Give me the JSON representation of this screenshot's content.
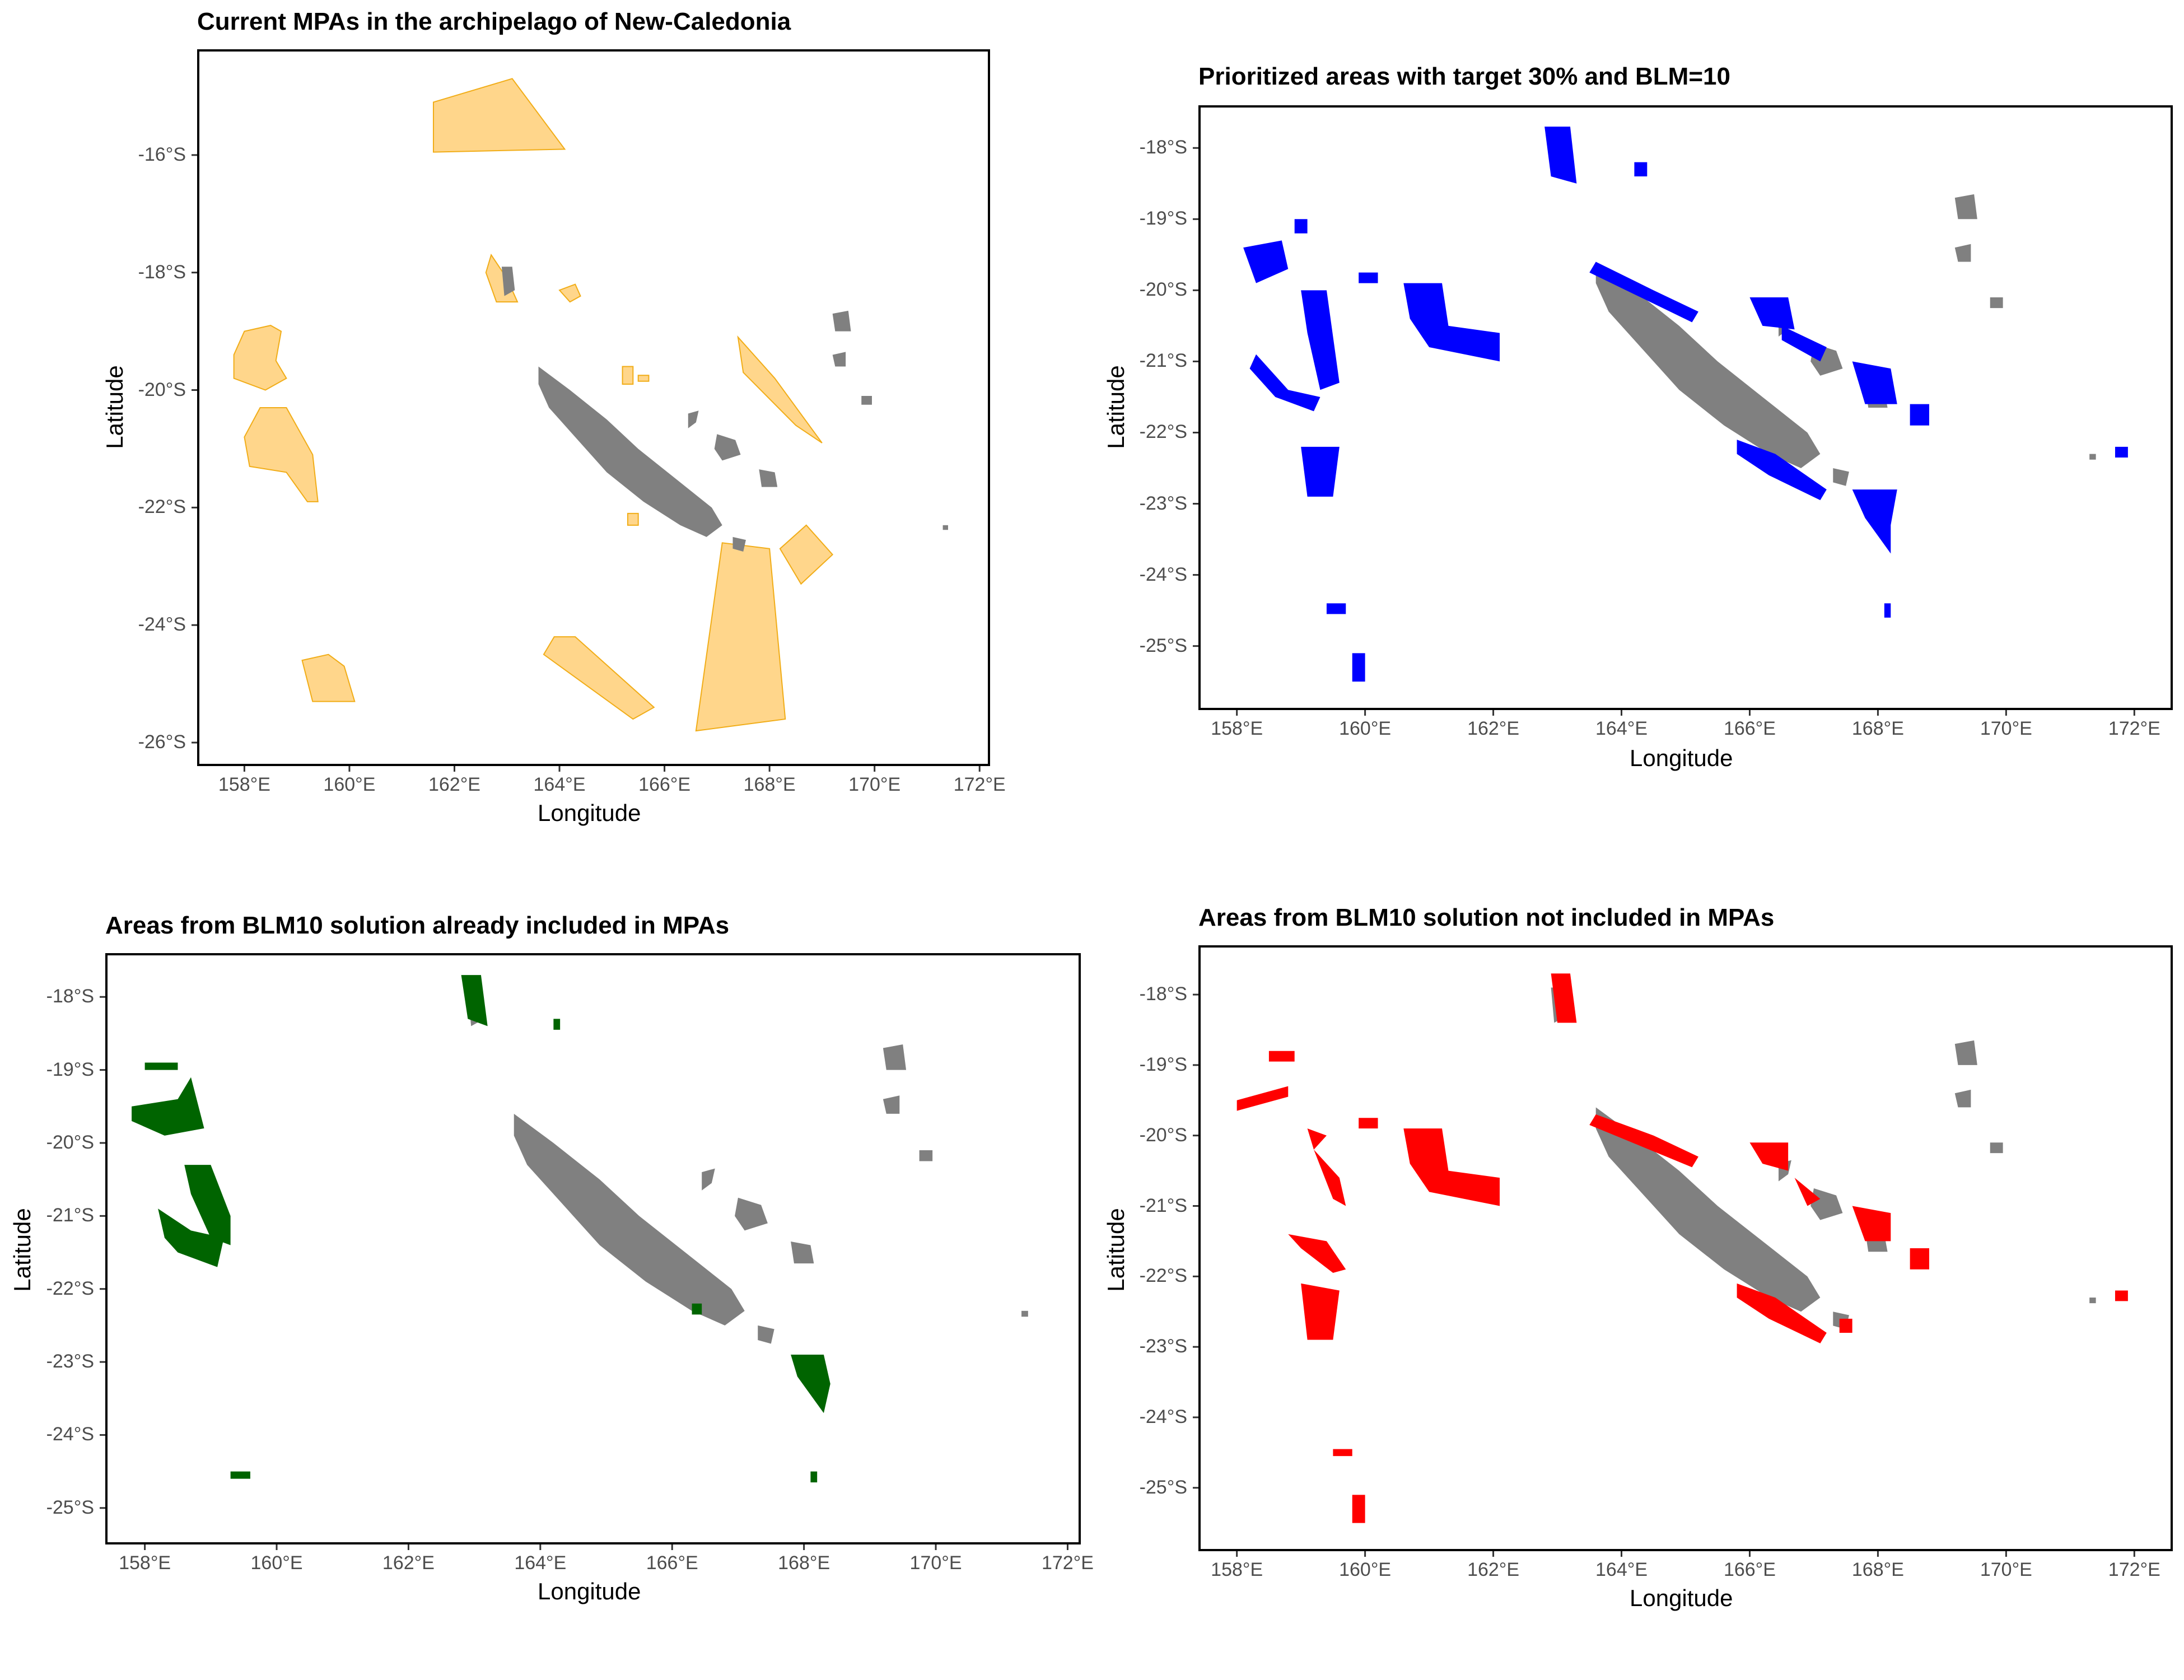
{
  "colors": {
    "land": "#808080",
    "mpa_fill": "#FFD27F",
    "mpa_stroke": "#F0A500",
    "prioritized": "#0000FF",
    "included": "#006400",
    "not_included": "#FF0000"
  },
  "axis_labels": {
    "x": "Longitude",
    "y": "Latitude"
  },
  "panels": [
    {
      "id": "p1",
      "title": "Current MPAs in the archipelago of New-Caledonia",
      "layer_color": "mpa",
      "ylim": [
        -26.4,
        -14.2
      ],
      "xlim": [
        157.1,
        172.2
      ],
      "yticks": [
        "-16°S",
        "-18°S",
        "-20°S",
        "-22°S",
        "-24°S",
        "-26°S"
      ],
      "ytick_values": [
        -16,
        -18,
        -20,
        -22,
        -24,
        -26
      ],
      "xticks": [
        "158°E",
        "160°E",
        "162°E",
        "164°E",
        "166°E",
        "168°E",
        "170°E",
        "172°E"
      ],
      "xtick_values": [
        158,
        160,
        162,
        164,
        166,
        168,
        170,
        172
      ]
    },
    {
      "id": "p2",
      "title": "Prioritized areas with target 30% and BLM=10",
      "layer_color": "prioritized",
      "ylim": [
        -25.9,
        -17.4
      ],
      "xlim": [
        157.4,
        172.6
      ],
      "yticks": [
        "-18°S",
        "-19°S",
        "-20°S",
        "-21°S",
        "-22°S",
        "-23°S",
        "-24°S",
        "-25°S"
      ],
      "ytick_values": [
        -18,
        -19,
        -20,
        -21,
        -22,
        -23,
        -24,
        -25
      ],
      "xticks": [
        "158°E",
        "160°E",
        "162°E",
        "164°E",
        "166°E",
        "168°E",
        "170°E",
        "172°E"
      ],
      "xtick_values": [
        158,
        160,
        162,
        164,
        166,
        168,
        170,
        172
      ]
    },
    {
      "id": "p3",
      "title": "Areas from BLM10 solution already included in MPAs",
      "layer_color": "included",
      "ylim": [
        -25.5,
        -17.4
      ],
      "xlim": [
        157.4,
        172.2
      ],
      "yticks": [
        "-18°S",
        "-19°S",
        "-20°S",
        "-21°S",
        "-22°S",
        "-23°S",
        "-24°S",
        "-25°S"
      ],
      "ytick_values": [
        -18,
        -19,
        -20,
        -21,
        -22,
        -23,
        -24,
        -25
      ],
      "xticks": [
        "158°E",
        "160°E",
        "162°E",
        "164°E",
        "166°E",
        "168°E",
        "170°E",
        "172°E"
      ],
      "xtick_values": [
        158,
        160,
        162,
        164,
        166,
        168,
        170,
        172
      ]
    },
    {
      "id": "p4",
      "title": "Areas from BLM10 solution not included in MPAs",
      "layer_color": "not_included",
      "ylim": [
        -25.9,
        -17.3
      ],
      "xlim": [
        157.4,
        172.6
      ],
      "yticks": [
        "-18°S",
        "-19°S",
        "-20°S",
        "-21°S",
        "-22°S",
        "-23°S",
        "-24°S",
        "-25°S"
      ],
      "ytick_values": [
        -18,
        -19,
        -20,
        -21,
        -22,
        -23,
        -24,
        -25
      ],
      "xticks": [
        "158°E",
        "160°E",
        "162°E",
        "164°E",
        "166°E",
        "168°E",
        "170°E",
        "172°E"
      ],
      "xtick_values": [
        158,
        160,
        162,
        164,
        166,
        168,
        170,
        172
      ]
    }
  ]
}
